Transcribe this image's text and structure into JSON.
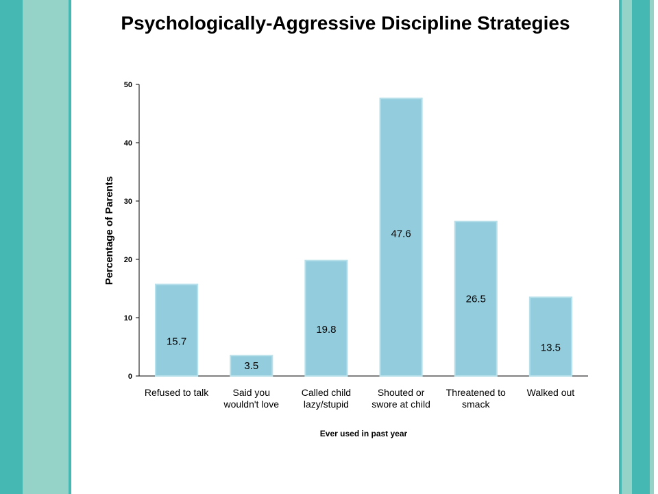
{
  "colors": {
    "stripe_dark": "#45b8b3",
    "stripe_light": "#95d2c8",
    "bar_fill": "#93cddd",
    "bar_stroke": "#b7e0ea",
    "axis": "#000000"
  },
  "chart_data": {
    "type": "bar",
    "title": "Psychologically-Aggressive Discipline Strategies",
    "xlabel": "Ever used in past year",
    "ylabel": "Percentage of Parents",
    "ylim": [
      0,
      50
    ],
    "yticks": [
      0,
      10,
      20,
      30,
      40,
      50
    ],
    "grid": false,
    "categories": [
      [
        "Refused to talk"
      ],
      [
        "Said you",
        "wouldn't love"
      ],
      [
        "Called child",
        "lazy/stupid"
      ],
      [
        "Shouted or",
        "swore at child"
      ],
      [
        "Threatened to",
        "smack"
      ],
      [
        "Walked out"
      ]
    ],
    "values": [
      15.7,
      3.5,
      19.8,
      47.6,
      26.5,
      13.5
    ]
  }
}
